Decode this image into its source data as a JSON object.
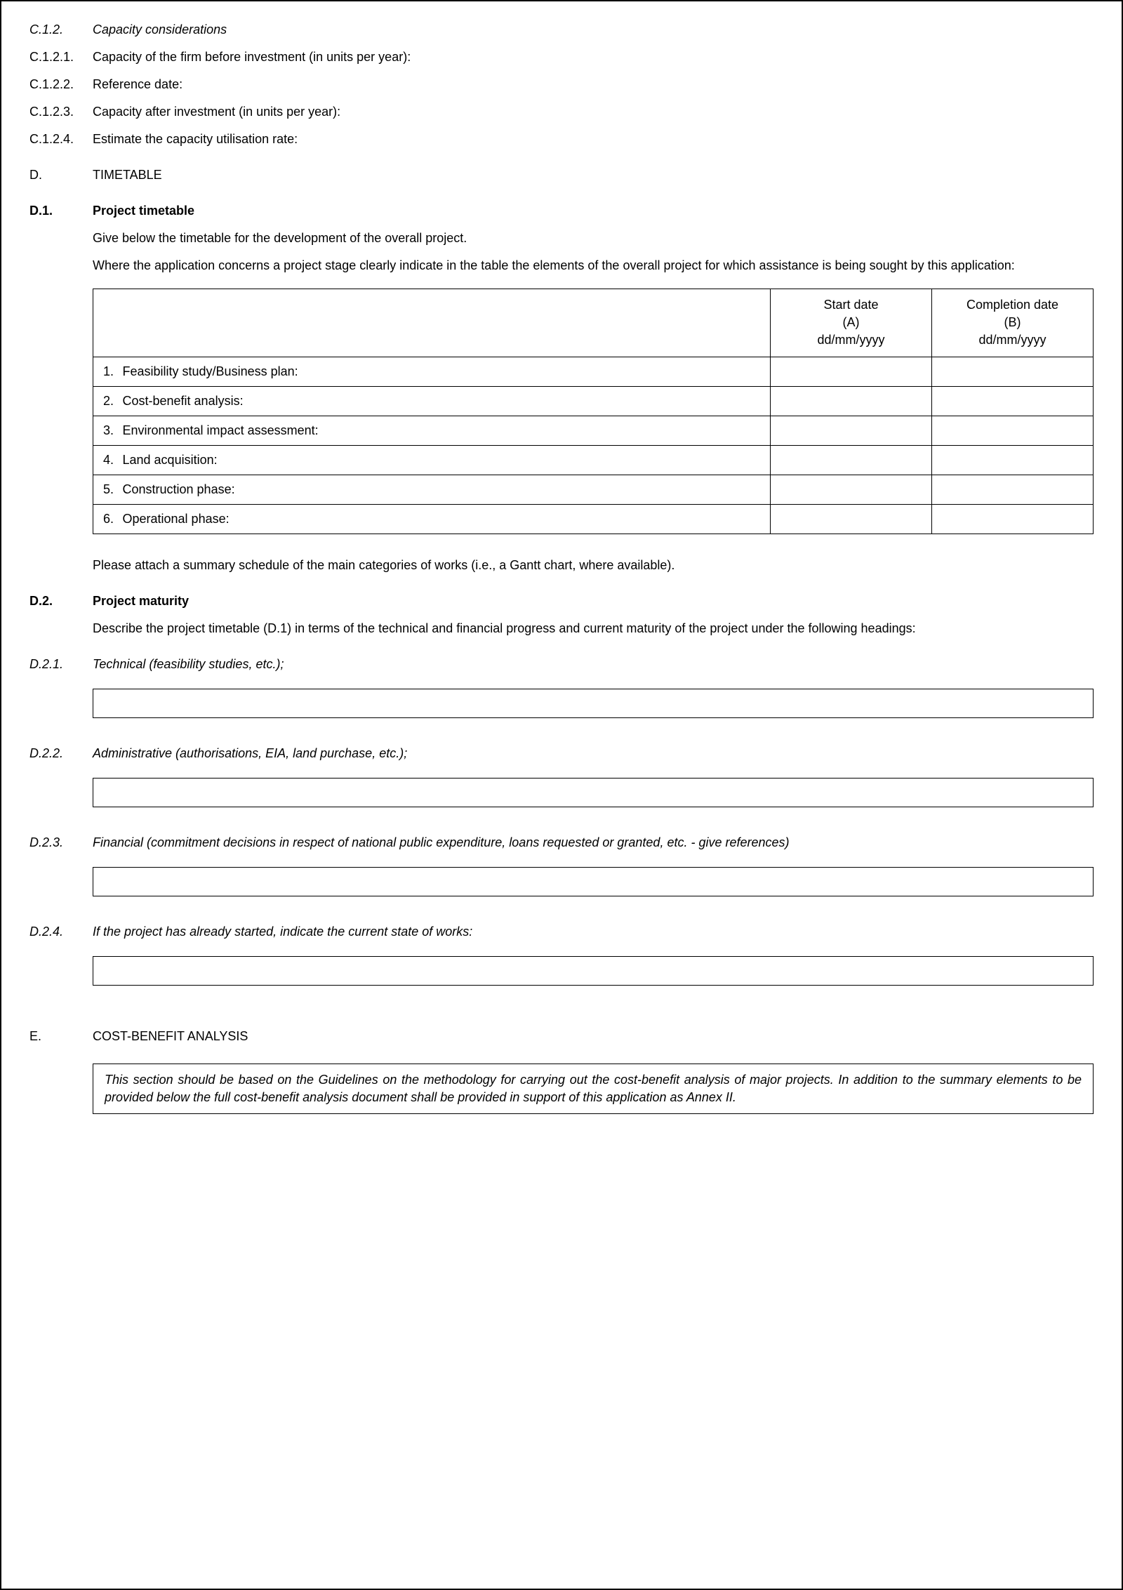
{
  "c12": {
    "num": "C.1.2.",
    "title": "Capacity considerations"
  },
  "c121": {
    "num": "C.1.2.1.",
    "text": "Capacity of the firm before investment (in units per year):"
  },
  "c122": {
    "num": "C.1.2.2.",
    "text": "Reference date:"
  },
  "c123": {
    "num": "C.1.2.3.",
    "text": "Capacity after investment (in units per year):"
  },
  "c124": {
    "num": "C.1.2.4.",
    "text": "Estimate the capacity utilisation rate:"
  },
  "d": {
    "num": "D.",
    "title": "TIMETABLE"
  },
  "d1": {
    "num": "D.1.",
    "title": "Project timetable",
    "p1": "Give below the timetable for the development of the overall project.",
    "p2": "Where the application concerns a project stage clearly indicate in the table the elements of the overall project for which assistance is being sought by this application:",
    "p3": "Please attach a summary schedule of the main categories of works (i.e., a Gantt chart, where available)."
  },
  "table": {
    "colA": {
      "l1": "Start date",
      "l2": "(A)",
      "l3": "dd/mm/yyyy"
    },
    "colB": {
      "l1": "Completion date",
      "l2": "(B)",
      "l3": "dd/mm/yyyy"
    },
    "rows": [
      {
        "n": "1.",
        "label": "Feasibility study/Business plan:"
      },
      {
        "n": "2.",
        "label": "Cost-benefit analysis:"
      },
      {
        "n": "3.",
        "label": "Environmental impact assessment:"
      },
      {
        "n": "4.",
        "label": "Land acquisition:"
      },
      {
        "n": "5.",
        "label": "Construction phase:"
      },
      {
        "n": "6.",
        "label": "Operational phase:"
      }
    ]
  },
  "d2": {
    "num": "D.2.",
    "title": "Project maturity",
    "p1": "Describe the project timetable (D.1) in terms of the technical and financial progress and current maturity of the project under the following headings:"
  },
  "d21": {
    "num": "D.2.1.",
    "text": "Technical (feasibility studies, etc.);"
  },
  "d22": {
    "num": "D.2.2.",
    "text": "Administrative (authorisations, EIA, land purchase, etc.);"
  },
  "d23": {
    "num": "D.2.3.",
    "text": "Financial (commitment decisions in respect of national public expenditure, loans requested or granted, etc. - give references)"
  },
  "d24": {
    "num": "D.2.4.",
    "text": "If the project has already started, indicate the current state of works:"
  },
  "e": {
    "num": "E.",
    "title": "COST-BENEFIT ANALYSIS",
    "info": "This section should be based on the Guidelines on the methodology for carrying out the cost-benefit analysis of major projects. In addition to the summary elements to be provided below the full cost-benefit analysis document shall be provided in support of this application as Annex II."
  }
}
